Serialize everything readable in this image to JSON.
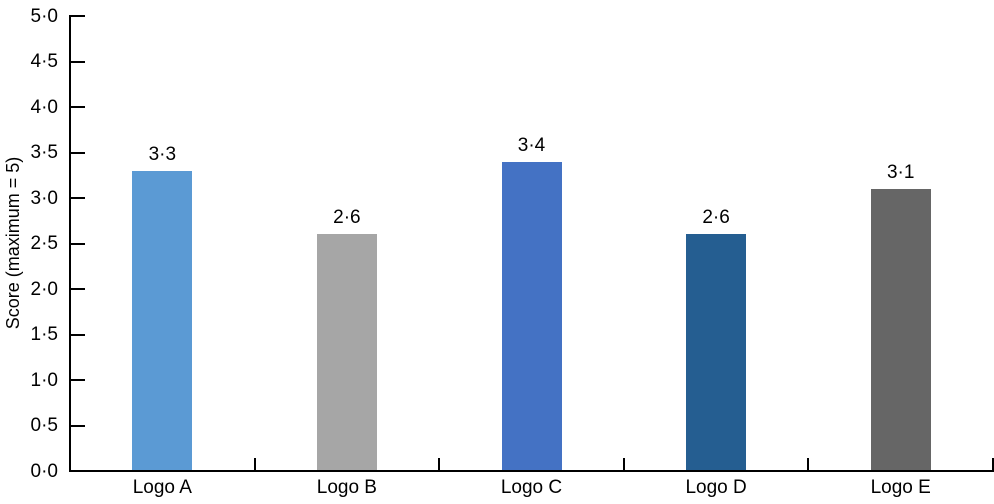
{
  "chart_data": {
    "type": "bar",
    "title": "",
    "xlabel": "",
    "ylabel": "Score (maximum = 5)",
    "categories": [
      "Logo A",
      "Logo B",
      "Logo C",
      "Logo D",
      "Logo E"
    ],
    "values": [
      3.3,
      2.6,
      3.4,
      2.6,
      3.1
    ],
    "value_labels": [
      "3·3",
      "2·6",
      "3·4",
      "2·6",
      "3·1"
    ],
    "bar_colors": [
      "#5b9ad4",
      "#a6a6a6",
      "#4472c4",
      "#255e91",
      "#666666"
    ],
    "ylim": [
      0,
      5
    ],
    "ytick_step": 0.5,
    "ytick_labels": [
      "0·0",
      "0·5",
      "1·0",
      "1·5",
      "2·0",
      "2·5",
      "3·0",
      "3·5",
      "4·0",
      "4·5",
      "5·0"
    ],
    "decimal_separator": "·",
    "grid": false,
    "legend": "none",
    "axis_color": "#000000",
    "background_color": "#ffffff"
  }
}
